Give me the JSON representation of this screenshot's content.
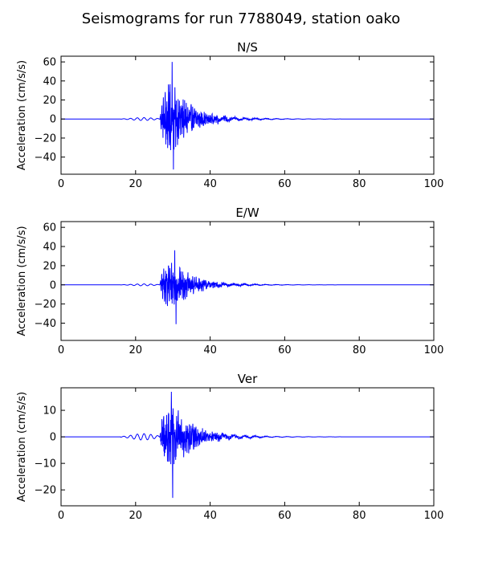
{
  "figure": {
    "title": "Seismograms for run 7788049, station oako"
  },
  "colors": {
    "line": "#0000ff",
    "axes": "#000000",
    "background": "#ffffff"
  },
  "chart_data": [
    {
      "type": "line",
      "title": "N/S",
      "xlabel": "",
      "ylabel": "Acceleration (cm/s/s)",
      "xlim": [
        0,
        100
      ],
      "ylim": [
        -58,
        66
      ],
      "xticks": [
        0,
        20,
        40,
        60,
        80,
        100
      ],
      "yticks": [
        -40,
        -20,
        0,
        20,
        40,
        60
      ],
      "grid": false,
      "signal": {
        "onset": 26.5,
        "peak_time": 29.8,
        "positive_peak": 60,
        "negative_peak": -53,
        "precursor_amplitude": 1.5,
        "coda_end": 75
      }
    },
    {
      "type": "line",
      "title": "E/W",
      "xlabel": "",
      "ylabel": "Acceleration (cm/s/s)",
      "xlim": [
        0,
        100
      ],
      "ylim": [
        -58,
        66
      ],
      "xticks": [
        0,
        20,
        40,
        60,
        80,
        100
      ],
      "yticks": [
        -40,
        -20,
        0,
        20,
        40,
        60
      ],
      "grid": false,
      "signal": {
        "onset": 26.5,
        "peak_time": 30.5,
        "positive_peak": 36,
        "negative_peak": -41,
        "precursor_amplitude": 1.0,
        "coda_end": 75
      }
    },
    {
      "type": "line",
      "title": "Ver",
      "xlabel": "",
      "ylabel": "Acceleration (cm/s/s)",
      "xlim": [
        0,
        100
      ],
      "ylim": [
        -26,
        18.5
      ],
      "xticks": [
        0,
        20,
        40,
        60,
        80,
        100
      ],
      "yticks": [
        -20,
        -10,
        0,
        10
      ],
      "grid": false,
      "signal": {
        "onset": 26.5,
        "peak_time": 29.6,
        "positive_peak": 17,
        "negative_peak": -23,
        "precursor_amplitude": 1.2,
        "coda_end": 75
      }
    }
  ]
}
